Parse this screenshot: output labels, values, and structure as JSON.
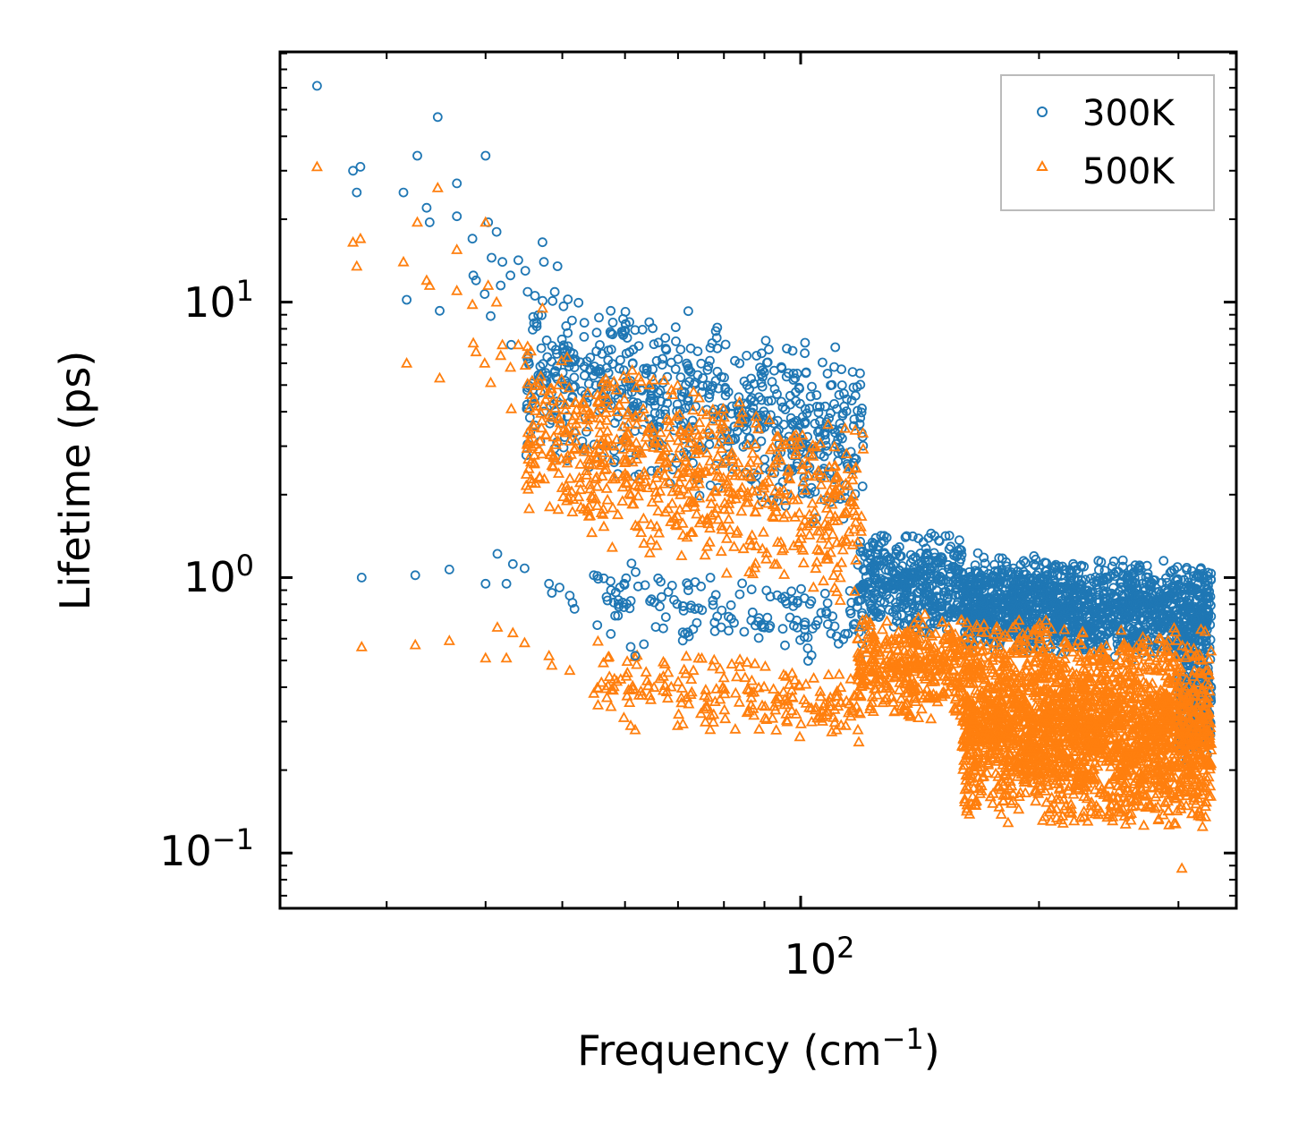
{
  "chart_data": {
    "type": "scatter",
    "xscale": "log",
    "yscale": "log",
    "xlim": [
      22,
      355
    ],
    "ylim": [
      0.063,
      81
    ],
    "xlabel": "Frequency (cm",
    "xlabel_sup": "−1",
    "xlabel_end": ")",
    "ylabel": "Lifetime (ps)",
    "xticks": [
      {
        "base": "10",
        "exp": "2",
        "value": 100
      }
    ],
    "yticks": [
      {
        "base": "10",
        "exp": "−1",
        "value": 0.1
      },
      {
        "base": "10",
        "exp": "0",
        "value": 1
      },
      {
        "base": "10",
        "exp": "1",
        "value": 10
      }
    ],
    "legend": {
      "position": "top-right"
    },
    "series": [
      {
        "name": "300K",
        "marker": "circle",
        "color": "#1f77b4",
        "sample_points": [
          [
            24.5,
            61
          ],
          [
            27.2,
            30
          ],
          [
            27.5,
            25
          ],
          [
            27.8,
            31
          ],
          [
            31.5,
            25
          ],
          [
            31.8,
            10.2
          ],
          [
            32.8,
            34
          ],
          [
            33.7,
            22
          ],
          [
            34.0,
            19.5
          ],
          [
            34.8,
            47
          ],
          [
            35.0,
            9.3
          ],
          [
            36.8,
            27
          ],
          [
            36.8,
            20.5
          ],
          [
            38.5,
            17
          ],
          [
            38.6,
            12.5
          ],
          [
            38.9,
            12
          ],
          [
            39.9,
            10.7
          ],
          [
            40.0,
            34
          ],
          [
            40.3,
            19.5
          ],
          [
            40.6,
            8.9
          ],
          [
            40.7,
            14.5
          ],
          [
            41.3,
            18
          ],
          [
            41.8,
            11.5
          ],
          [
            42.0,
            14
          ],
          [
            43.0,
            12.5
          ],
          [
            43.1,
            7.0
          ],
          [
            44.0,
            14.2
          ],
          [
            44.9,
            13.0
          ],
          [
            45.2,
            10.9
          ],
          [
            47.2,
            16.5
          ],
          [
            47.4,
            14
          ],
          [
            48.6,
            10.1
          ],
          [
            49.3,
            13.5
          ],
          [
            27.9,
            1.0
          ],
          [
            32.6,
            1.02
          ],
          [
            36.0,
            1.07
          ],
          [
            40.0,
            0.95
          ],
          [
            41.4,
            1.22
          ],
          [
            42.5,
            0.95
          ],
          [
            43.3,
            1.12
          ],
          [
            44.8,
            1.08
          ],
          [
            48.1,
            0.95
          ],
          [
            48.5,
            0.88
          ],
          [
            49.6,
            0.92
          ],
          [
            51.1,
            0.86
          ],
          [
            51.5,
            0.81
          ],
          [
            51.8,
            0.77
          ],
          [
            54.8,
            1.02
          ],
          [
            55.5,
            0.99
          ],
          [
            57.6,
            0.9
          ],
          [
            59.8,
            0.78
          ],
          [
            61.0,
            0.56
          ],
          [
            61.8,
            0.52
          ]
        ]
      },
      {
        "name": "500K",
        "marker": "triangle",
        "color": "#ff7f0e",
        "sample_points": [
          [
            24.5,
            31
          ],
          [
            27.2,
            16.5
          ],
          [
            27.5,
            13.5
          ],
          [
            27.8,
            17
          ],
          [
            31.5,
            14
          ],
          [
            31.8,
            6.0
          ],
          [
            32.8,
            19.5
          ],
          [
            33.7,
            12
          ],
          [
            34.0,
            11.5
          ],
          [
            34.8,
            26
          ],
          [
            35.0,
            5.3
          ],
          [
            36.8,
            15.5
          ],
          [
            36.8,
            11
          ],
          [
            38.5,
            9.8
          ],
          [
            38.6,
            7.1
          ],
          [
            38.9,
            6.6
          ],
          [
            39.9,
            6.0
          ],
          [
            40.0,
            19.5
          ],
          [
            40.3,
            11.5
          ],
          [
            40.6,
            5.1
          ],
          [
            41.3,
            10.0
          ],
          [
            41.8,
            6.4
          ],
          [
            42.0,
            7.0
          ],
          [
            43.0,
            5.8
          ],
          [
            43.1,
            4.1
          ],
          [
            44.0,
            7.0
          ],
          [
            44.9,
            5.9
          ],
          [
            45.2,
            6.9
          ],
          [
            47.2,
            9.5
          ],
          [
            27.9,
            0.56
          ],
          [
            32.6,
            0.57
          ],
          [
            36.0,
            0.59
          ],
          [
            40.0,
            0.51
          ],
          [
            41.4,
            0.66
          ],
          [
            42.5,
            0.51
          ],
          [
            43.3,
            0.63
          ],
          [
            44.8,
            0.58
          ],
          [
            48.1,
            0.52
          ],
          [
            48.5,
            0.48
          ],
          [
            51.1,
            0.46
          ],
          [
            54.8,
            0.38
          ],
          [
            57.6,
            0.34
          ],
          [
            59.8,
            0.31
          ],
          [
            61.0,
            0.29
          ],
          [
            61.8,
            0.28
          ],
          [
            101,
            0.36
          ],
          [
            106,
            0.37
          ],
          [
            111,
            0.28
          ],
          [
            114,
            0.29
          ],
          [
            303,
            0.088
          ]
        ]
      }
    ],
    "clusters": [
      {
        "series": 0,
        "x": [
          45,
          120
        ],
        "y": [
          1.9,
          9.5
        ],
        "slope": -1.3,
        "count": 700
      },
      {
        "series": 1,
        "x": [
          45,
          120
        ],
        "y": [
          1.0,
          5.5
        ],
        "slope": -1.4,
        "count": 700
      },
      {
        "series": 0,
        "x": [
          55,
          120
        ],
        "y": [
          0.52,
          1.05
        ],
        "slope": -0.6,
        "count": 150
      },
      {
        "series": 1,
        "x": [
          55,
          120
        ],
        "y": [
          0.27,
          0.55
        ],
        "slope": -0.6,
        "count": 200
      },
      {
        "series": 0,
        "x": [
          118,
          160
        ],
        "y": [
          0.6,
          1.5
        ],
        "slope": 0.0,
        "count": 420
      },
      {
        "series": 1,
        "x": [
          118,
          160
        ],
        "y": [
          0.3,
          0.75
        ],
        "slope": 0.0,
        "count": 380
      },
      {
        "series": 0,
        "x": [
          160,
          330
        ],
        "y": [
          0.5,
          1.2
        ],
        "slope": -0.2,
        "count": 1500
      },
      {
        "series": 1,
        "x": [
          160,
          330
        ],
        "y": [
          0.12,
          0.7
        ],
        "slope": -0.4,
        "count": 2400
      },
      {
        "series": 0,
        "x": [
          300,
          330
        ],
        "y": [
          0.2,
          0.7
        ],
        "slope": -0.5,
        "count": 200
      }
    ]
  }
}
